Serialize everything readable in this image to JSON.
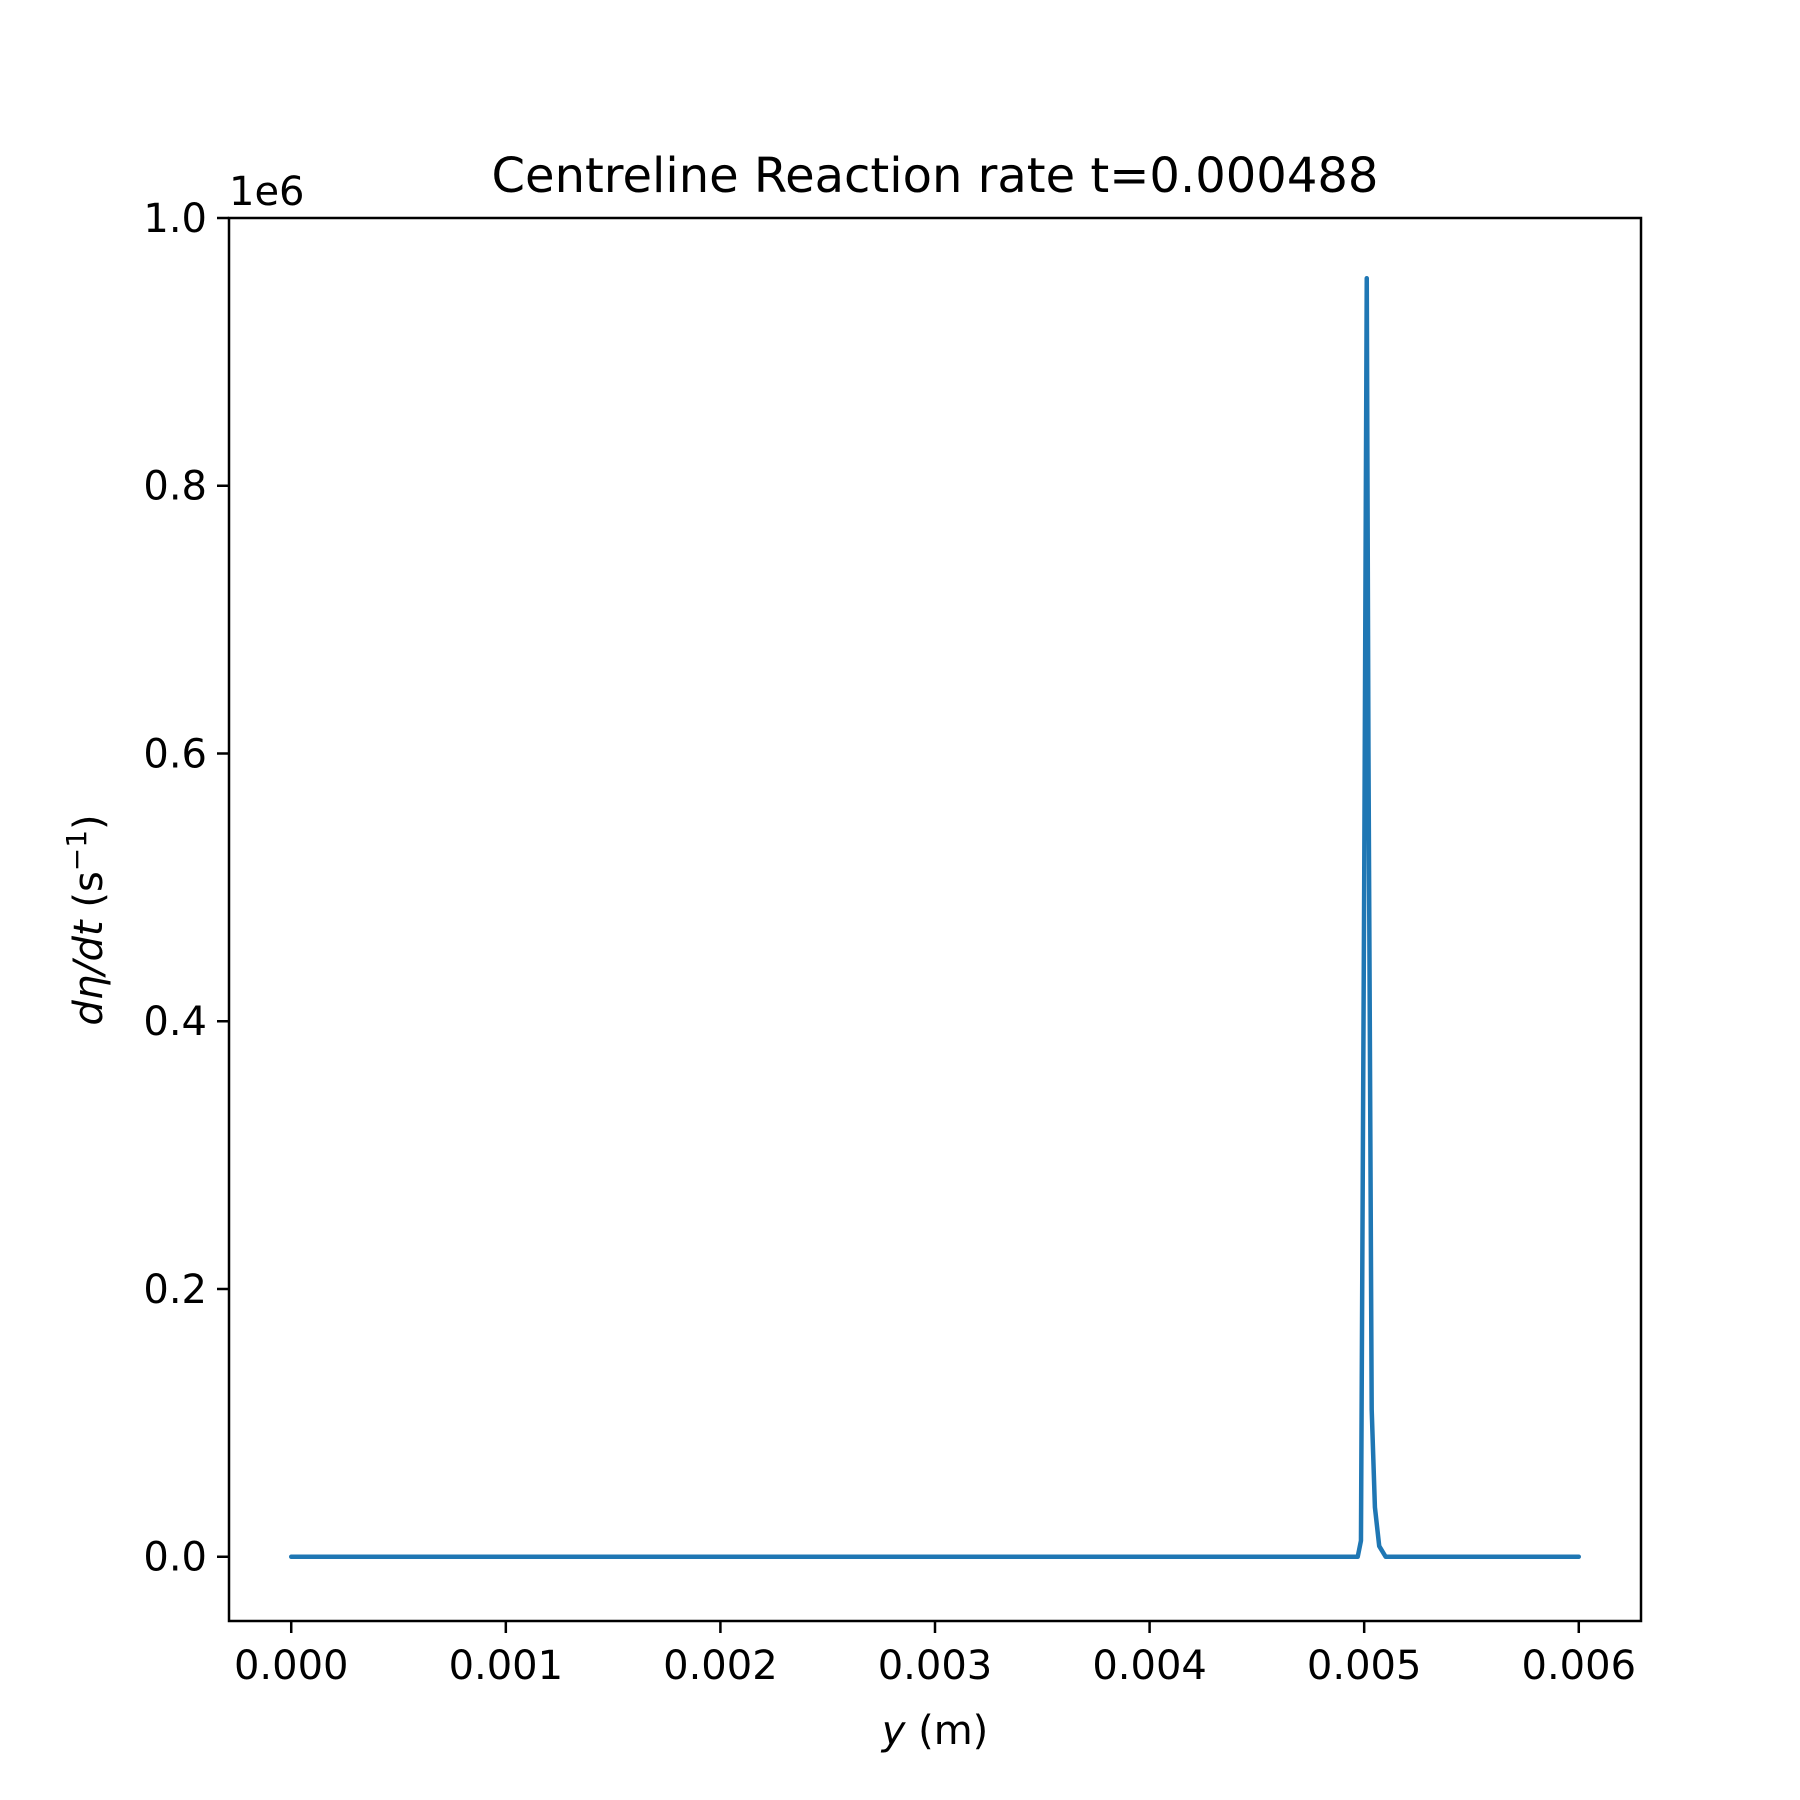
{
  "chart_data": {
    "type": "line",
    "title": "Centreline Reaction rate t=0.000488",
    "xlabel": {
      "var": "y",
      "unit": " (m)"
    },
    "ylabel": {
      "var": "dη/dt",
      "unit_open": " (s",
      "sup": "−1",
      "unit_close": ")"
    },
    "y_multiplier": "1e6",
    "xlim": [
      -0.00029,
      0.00629
    ],
    "ylim": [
      -0.048,
      1.0
    ],
    "x_ticks": [
      {
        "value": 0.0,
        "label": "0.000"
      },
      {
        "value": 0.001,
        "label": "0.001"
      },
      {
        "value": 0.002,
        "label": "0.002"
      },
      {
        "value": 0.003,
        "label": "0.003"
      },
      {
        "value": 0.004,
        "label": "0.004"
      },
      {
        "value": 0.005,
        "label": "0.005"
      },
      {
        "value": 0.006,
        "label": "0.006"
      }
    ],
    "y_ticks": [
      {
        "value": 0.0,
        "label": "0.0"
      },
      {
        "value": 0.2,
        "label": "0.2"
      },
      {
        "value": 0.4,
        "label": "0.4"
      },
      {
        "value": 0.6,
        "label": "0.6"
      },
      {
        "value": 0.8,
        "label": "0.8"
      },
      {
        "value": 1.0,
        "label": "1.0"
      }
    ],
    "grid": false,
    "series": [
      {
        "color": "#1f77b4",
        "points": [
          [
            0.0,
            0.0
          ],
          [
            0.00497,
            0.0
          ],
          [
            0.004985,
            0.012
          ],
          [
            0.005,
            0.5
          ],
          [
            0.005012,
            0.955
          ],
          [
            0.00502,
            0.6
          ],
          [
            0.005035,
            0.11
          ],
          [
            0.00505,
            0.037
          ],
          [
            0.00507,
            0.008
          ],
          [
            0.0051,
            0.0
          ],
          [
            0.006,
            0.0
          ]
        ]
      }
    ]
  }
}
